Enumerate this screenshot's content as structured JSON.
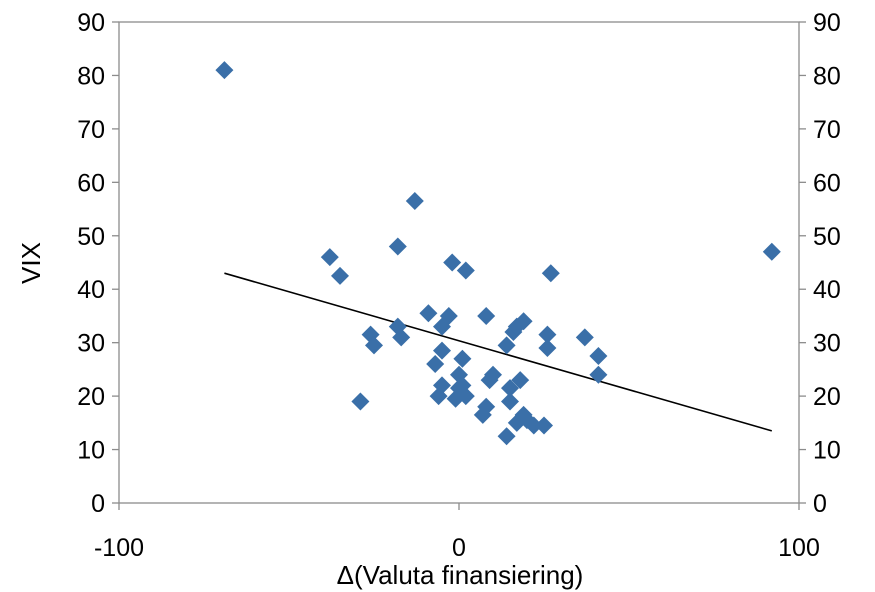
{
  "chart_data": {
    "type": "scatter",
    "title": "",
    "xlabel": "Δ(Valuta finansiering)",
    "ylabel": "VIX",
    "xlim": [
      -100,
      100
    ],
    "ylim": [
      0,
      90
    ],
    "x_ticks": [
      -100,
      0,
      100
    ],
    "y_ticks": [
      0,
      10,
      20,
      30,
      40,
      50,
      60,
      70,
      80,
      90
    ],
    "right_axis_ticks": [
      0,
      10,
      20,
      30,
      40,
      50,
      60,
      70,
      80,
      90
    ],
    "grid": false,
    "legend": "none",
    "marker": "diamond",
    "marker_color": "#3A6FA8",
    "trendline_color": "#000000",
    "series": [
      {
        "points": [
          [
            -69,
            81
          ],
          [
            -38,
            46
          ],
          [
            -35,
            42.5
          ],
          [
            -29,
            19
          ],
          [
            -26,
            31.5
          ],
          [
            -25,
            29.5
          ],
          [
            -18,
            48
          ],
          [
            -18,
            33
          ],
          [
            -17,
            31
          ],
          [
            -13,
            56.5
          ],
          [
            -9,
            35.5
          ],
          [
            -7,
            26
          ],
          [
            -6,
            20
          ],
          [
            -5,
            22
          ],
          [
            -5,
            28.5
          ],
          [
            -5,
            33
          ],
          [
            -3,
            35
          ],
          [
            -2,
            45
          ],
          [
            -1,
            19.5
          ],
          [
            0,
            24
          ],
          [
            0,
            21.5
          ],
          [
            1,
            27
          ],
          [
            1,
            22
          ],
          [
            2,
            43.5
          ],
          [
            2,
            20
          ],
          [
            7,
            16.5
          ],
          [
            8,
            18
          ],
          [
            8,
            35
          ],
          [
            9,
            23
          ],
          [
            10,
            24
          ],
          [
            14,
            12.5
          ],
          [
            14,
            29.5
          ],
          [
            15,
            19
          ],
          [
            15,
            21.5
          ],
          [
            16,
            32
          ],
          [
            17,
            15
          ],
          [
            17,
            33
          ],
          [
            18,
            23
          ],
          [
            19,
            16.5
          ],
          [
            19,
            34
          ],
          [
            20,
            15.5
          ],
          [
            22,
            14.5
          ],
          [
            25,
            14.5
          ],
          [
            26,
            29
          ],
          [
            26,
            31.5
          ],
          [
            27,
            43
          ],
          [
            37,
            31
          ],
          [
            41,
            24
          ],
          [
            41,
            27.5
          ],
          [
            92,
            47
          ]
        ]
      }
    ],
    "trendline": {
      "x": [
        -69,
        92
      ],
      "y": [
        43,
        13.5
      ]
    }
  }
}
